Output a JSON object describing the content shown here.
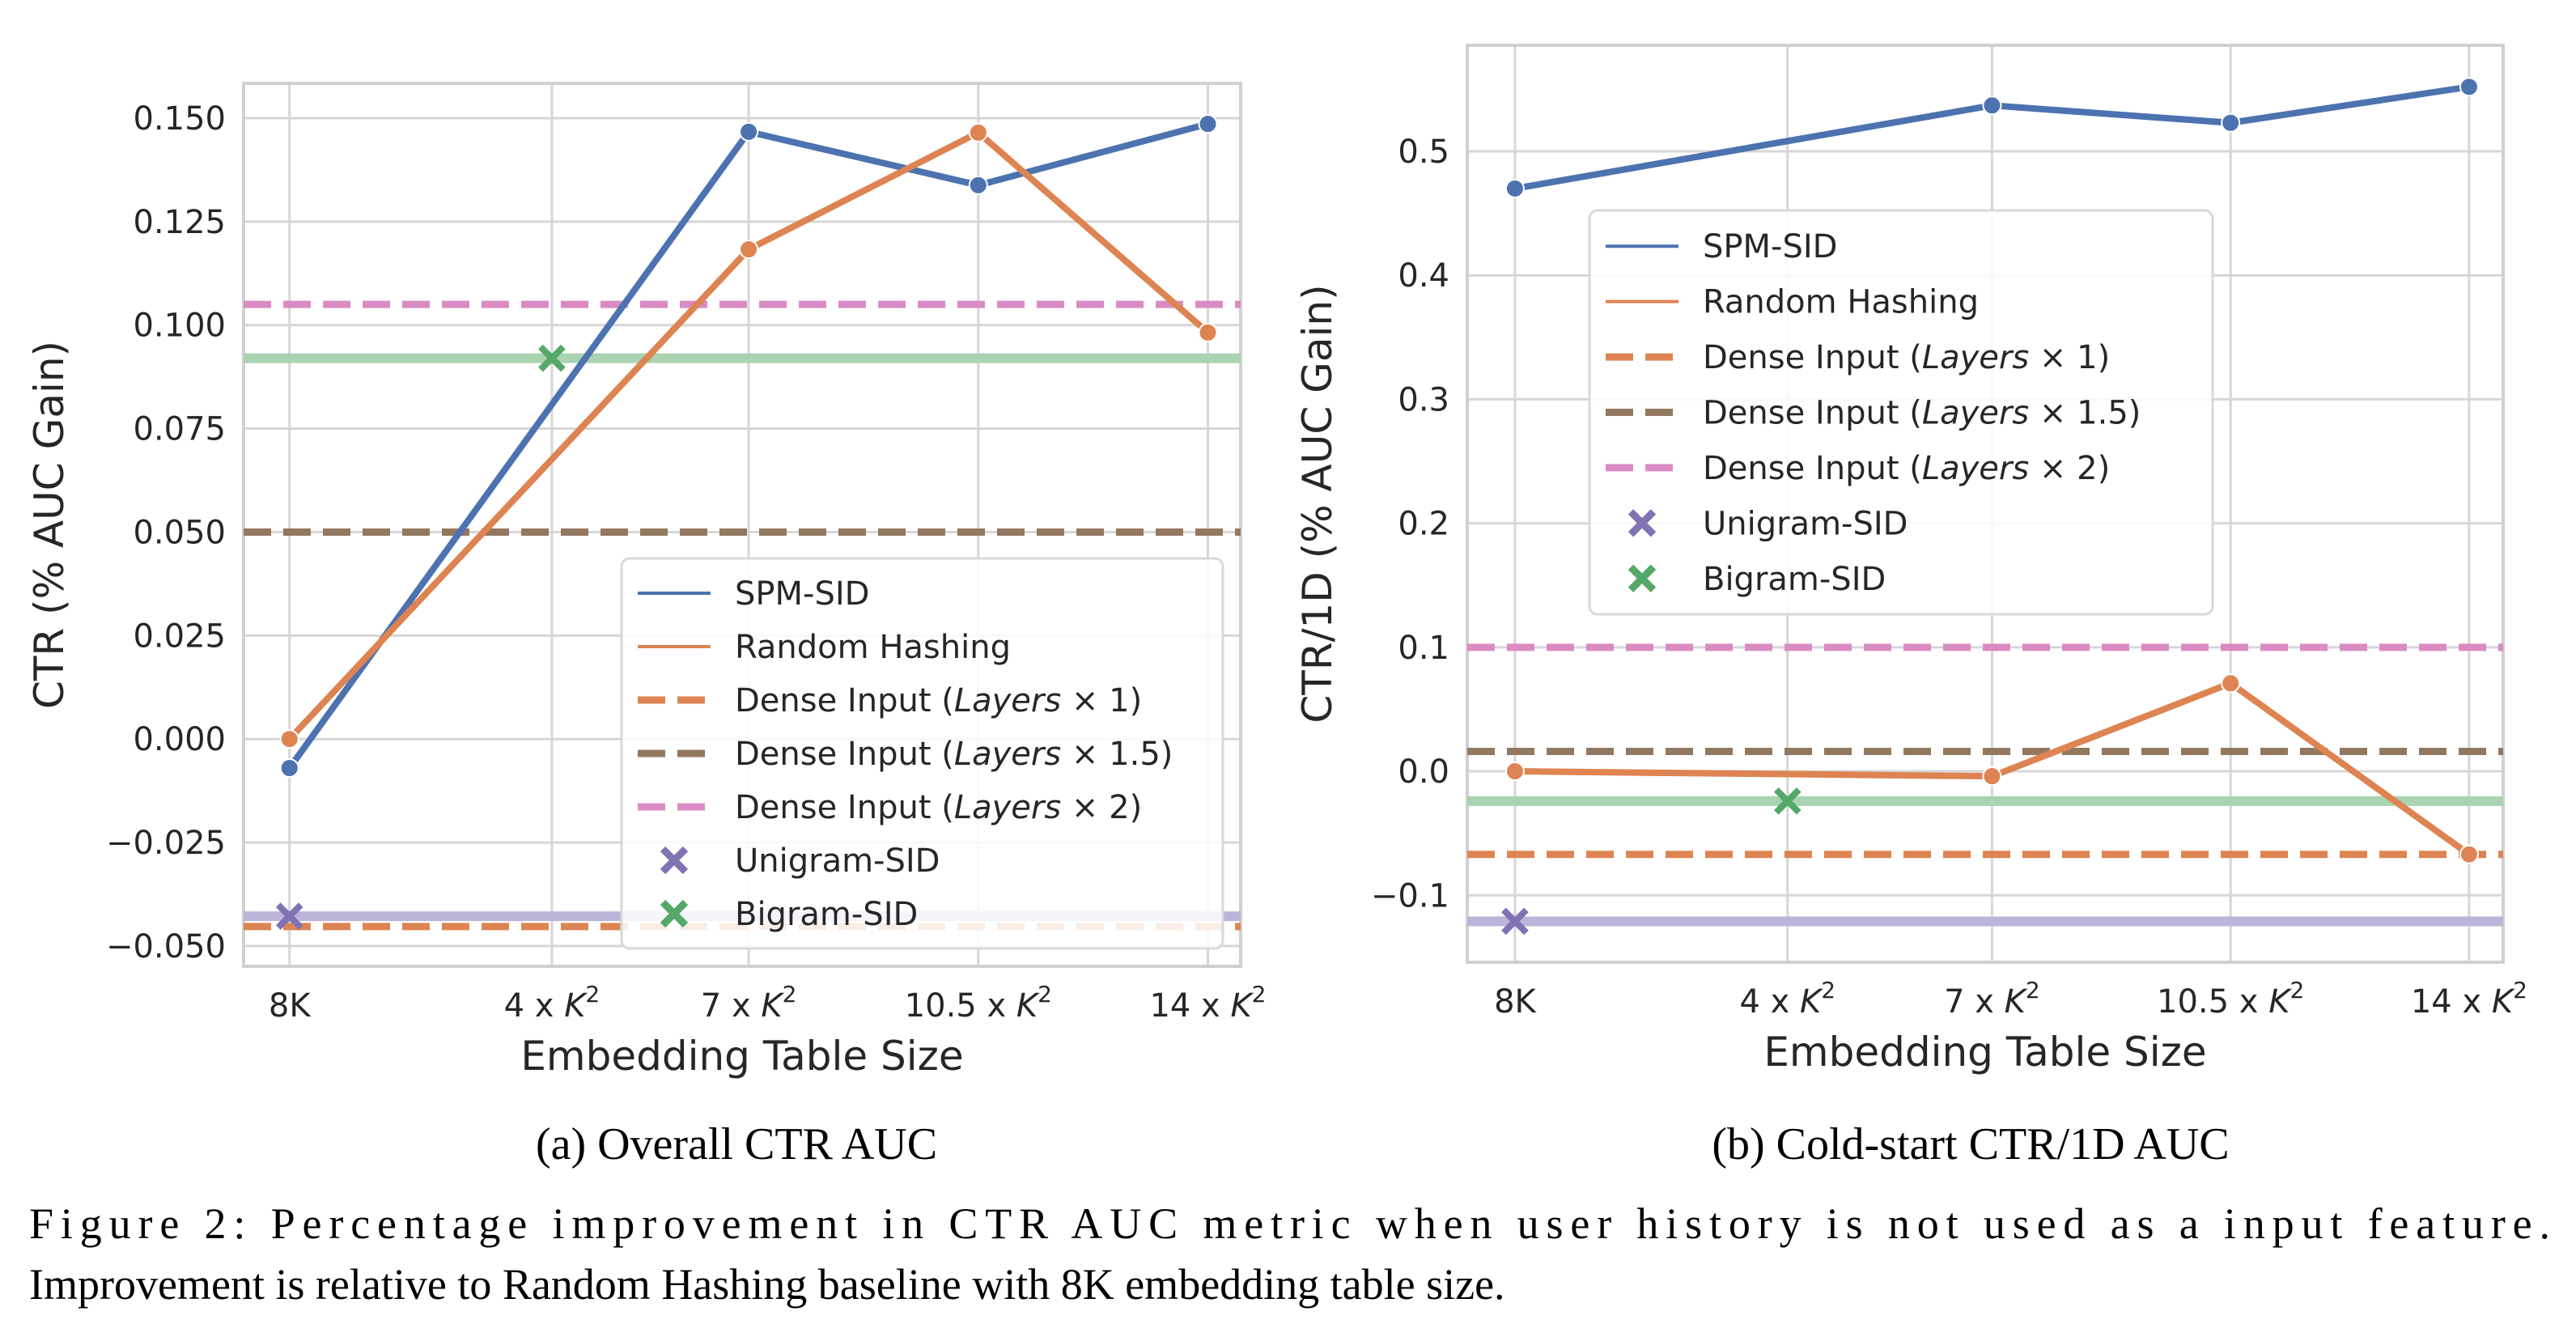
{
  "figure": {
    "subcaption_a": "(a) Overall CTR AUC",
    "subcaption_b": "(b) Cold-start CTR/1D AUC",
    "caption_line1": "Figure 2:  Percentage improvement in CTR AUC metric when user history is not used as a input feature.",
    "caption_line2": "Improvement is relative to Random Hashing baseline with 8K embedding table size."
  },
  "colors": {
    "spm_sid": "#4c72b0",
    "random_hashing": "#dd8452",
    "dense_x1": "#dd8452",
    "dense_x1_5": "#937860",
    "dense_x2": "#da8bc3",
    "unigram": "#8172b3",
    "bigram": "#55a868",
    "unigram_line": "#bcb4d9",
    "bigram_line": "#a9d3b1"
  },
  "chart_data": [
    {
      "type": "line",
      "id": "a",
      "title": "",
      "xlabel": "Embedding Table Size",
      "ylabel": "CTR (% AUC Gain)",
      "x_tick_labels": [
        {
          "x": 0,
          "base": "8K",
          "sup": ""
        },
        {
          "x": 4,
          "base": "4 x ",
          "ital": "K",
          "sup": "2"
        },
        {
          "x": 7,
          "base": "7 x ",
          "ital": "K",
          "sup": "2"
        },
        {
          "x": 10.5,
          "base": "10.5 x ",
          "ital": "K",
          "sup": "2"
        },
        {
          "x": 14,
          "base": "14 x ",
          "ital": "K",
          "sup": "2"
        }
      ],
      "xlim": [
        -0.7,
        14.5
      ],
      "ylim": [
        -0.0549,
        0.1584
      ],
      "y_ticks": [
        -0.05,
        -0.025,
        0.0,
        0.025,
        0.05,
        0.075,
        0.1,
        0.125,
        0.15
      ],
      "y_tick_labels": [
        "−0.050",
        "−0.025",
        "0.000",
        "0.025",
        "0.050",
        "0.075",
        "0.100",
        "0.125",
        "0.150"
      ],
      "grid": true,
      "series": [
        {
          "name": "SPM-SID",
          "kind": "line",
          "x": [
            0,
            7,
            10.5,
            14
          ],
          "values": [
            -0.007,
            0.1467,
            0.1338,
            0.1486
          ]
        },
        {
          "name": "Random Hashing",
          "kind": "line",
          "x": [
            0,
            7,
            10.5,
            14
          ],
          "values": [
            0.0,
            0.1183,
            0.1465,
            0.0982
          ]
        },
        {
          "name": "Dense Input (Layers × 1)",
          "kind": "hline",
          "value": -0.0453
        },
        {
          "name": "Dense Input (Layers × 1.5)",
          "kind": "hline",
          "value": 0.05
        },
        {
          "name": "Dense Input (Layers × 2)",
          "kind": "hline",
          "value": 0.105
        },
        {
          "name": "Unigram-SID",
          "kind": "marker",
          "x": 0,
          "value": -0.0428
        },
        {
          "name": "Bigram-SID",
          "kind": "marker",
          "x": 4,
          "value": 0.092
        }
      ],
      "legend": {
        "placement": "lower-right",
        "entries": [
          {
            "key": "spm",
            "prefix": "SPM-SID",
            "ital": "",
            "suffix": ""
          },
          {
            "key": "rh",
            "prefix": "Random Hashing",
            "ital": "",
            "suffix": ""
          },
          {
            "key": "d1",
            "prefix": "Dense Input (",
            "ital": "Layers",
            "suffix": " × 1)"
          },
          {
            "key": "d15",
            "prefix": "Dense Input (",
            "ital": "Layers",
            "suffix": " × 1.5)"
          },
          {
            "key": "d2",
            "prefix": "Dense Input (",
            "ital": "Layers",
            "suffix": " × 2)"
          },
          {
            "key": "uni",
            "prefix": "Unigram-SID",
            "ital": "",
            "suffix": ""
          },
          {
            "key": "bi",
            "prefix": "Bigram-SID",
            "ital": "",
            "suffix": ""
          }
        ]
      }
    },
    {
      "type": "line",
      "id": "b",
      "title": "",
      "xlabel": "Embedding Table Size",
      "ylabel": "CTR/1D (% AUC Gain)",
      "x_tick_labels": [
        {
          "x": 0,
          "base": "8K",
          "sup": ""
        },
        {
          "x": 4,
          "base": "4 x ",
          "ital": "K",
          "sup": "2"
        },
        {
          "x": 7,
          "base": "7 x ",
          "ital": "K",
          "sup": "2"
        },
        {
          "x": 10.5,
          "base": "10.5 x ",
          "ital": "K",
          "sup": "2"
        },
        {
          "x": 14,
          "base": "14 x ",
          "ital": "K",
          "sup": "2"
        }
      ],
      "xlim": [
        -0.7,
        14.5
      ],
      "ylim": [
        -0.154,
        0.5855
      ],
      "y_ticks": [
        -0.1,
        0.0,
        0.1,
        0.2,
        0.3,
        0.4,
        0.5
      ],
      "y_tick_labels": [
        "−0.1",
        "0.0",
        "0.1",
        "0.2",
        "0.3",
        "0.4",
        "0.5"
      ],
      "grid": true,
      "series": [
        {
          "name": "SPM-SID",
          "kind": "line",
          "x": [
            0,
            7,
            10.5,
            14
          ],
          "values": [
            0.47,
            0.537,
            0.523,
            0.552
          ]
        },
        {
          "name": "Random Hashing",
          "kind": "line",
          "x": [
            0,
            7,
            10.5,
            14
          ],
          "values": [
            0.0,
            -0.004,
            0.071,
            -0.067
          ]
        },
        {
          "name": "Dense Input (Layers × 1)",
          "kind": "hline",
          "value": -0.067
        },
        {
          "name": "Dense Input (Layers × 1.5)",
          "kind": "hline",
          "value": 0.016
        },
        {
          "name": "Dense Input (Layers × 2)",
          "kind": "hline",
          "value": 0.1
        },
        {
          "name": "Unigram-SID",
          "kind": "marker",
          "x": 0,
          "value": -0.121
        },
        {
          "name": "Bigram-SID",
          "kind": "marker",
          "x": 4,
          "value": -0.024
        }
      ],
      "legend": {
        "placement": "center",
        "entries": [
          {
            "key": "spm",
            "prefix": "SPM-SID",
            "ital": "",
            "suffix": ""
          },
          {
            "key": "rh",
            "prefix": "Random Hashing",
            "ital": "",
            "suffix": ""
          },
          {
            "key": "d1",
            "prefix": "Dense Input (",
            "ital": "Layers",
            "suffix": " × 1)"
          },
          {
            "key": "d15",
            "prefix": "Dense Input (",
            "ital": "Layers",
            "suffix": " × 1.5)"
          },
          {
            "key": "d2",
            "prefix": "Dense Input (",
            "ital": "Layers",
            "suffix": " × 2)"
          },
          {
            "key": "uni",
            "prefix": "Unigram-SID",
            "ital": "",
            "suffix": ""
          },
          {
            "key": "bi",
            "prefix": "Bigram-SID",
            "ital": "",
            "suffix": ""
          }
        ]
      }
    }
  ]
}
